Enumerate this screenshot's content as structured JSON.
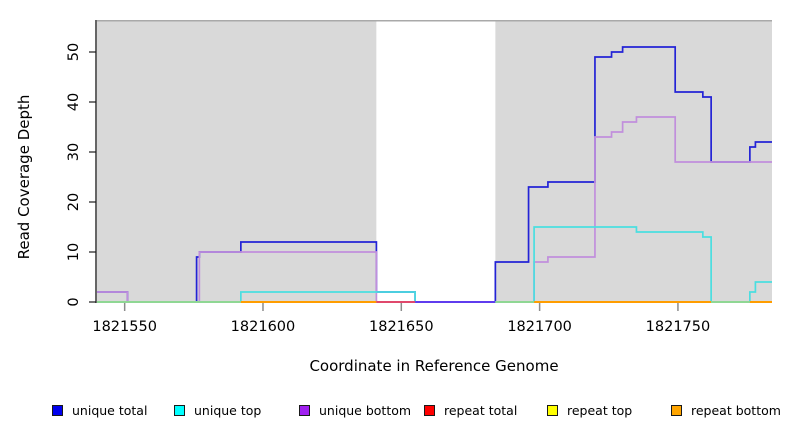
{
  "chart_data": {
    "type": "line",
    "subtype": "step-coverage",
    "title": "",
    "xlabel": "Coordinate in Reference Genome",
    "ylabel": "Read Coverage Depth",
    "x_ticks": [
      1821550,
      1821600,
      1821650,
      1821700,
      1821750
    ],
    "y_ticks": [
      0,
      10,
      20,
      30,
      40,
      50
    ],
    "xlim": [
      1821540,
      1821784
    ],
    "ylim": [
      0,
      56
    ],
    "grid": false,
    "legend_position": "bottom",
    "background_regions": [
      {
        "name": "aligned-region-left",
        "x0": 1821540,
        "x1": 1821641,
        "color": "#d9d9d9"
      },
      {
        "name": "uncovered-gap",
        "x0": 1821641,
        "x1": 1821684,
        "color": "#ffffff"
      },
      {
        "name": "aligned-region-right",
        "x0": 1821684,
        "x1": 1821784,
        "color": "#d9d9d9"
      }
    ],
    "series": [
      {
        "name": "unique total",
        "color": "#2323d6",
        "steps": [
          [
            1821540,
            2
          ],
          [
            1821551,
            0
          ],
          [
            1821576,
            9
          ],
          [
            1821577,
            10
          ],
          [
            1821592,
            12
          ],
          [
            1821641,
            2
          ],
          [
            1821655,
            0
          ],
          [
            1821684,
            8
          ],
          [
            1821696,
            23
          ],
          [
            1821703,
            24
          ],
          [
            1821720,
            49
          ],
          [
            1821726,
            50
          ],
          [
            1821730,
            51
          ],
          [
            1821749,
            42
          ],
          [
            1821759,
            41
          ],
          [
            1821762,
            28
          ],
          [
            1821776,
            31
          ],
          [
            1821778,
            32
          ]
        ],
        "end_x": 1821784
      },
      {
        "name": "unique bottom",
        "color": "#c18fdc",
        "steps": [
          [
            1821540,
            2
          ],
          [
            1821551,
            0
          ],
          [
            1821577,
            10
          ],
          [
            1821641,
            0
          ],
          [
            1821698,
            8
          ],
          [
            1821703,
            9
          ],
          [
            1821720,
            33
          ],
          [
            1821726,
            34
          ],
          [
            1821730,
            36
          ],
          [
            1821735,
            37
          ],
          [
            1821749,
            28
          ]
        ],
        "end_x": 1821784
      },
      {
        "name": "unique top",
        "color": "#4adee0",
        "steps": [
          [
            1821540,
            0
          ],
          [
            1821592,
            2
          ],
          [
            1821655,
            0
          ],
          [
            1821698,
            15
          ],
          [
            1821735,
            14
          ],
          [
            1821759,
            13
          ],
          [
            1821762,
            0
          ],
          [
            1821776,
            2
          ],
          [
            1821778,
            4
          ]
        ],
        "end_x": 1821784
      },
      {
        "name": "repeat total",
        "color": "#ff0000",
        "steps": [
          [
            1821641,
            0
          ]
        ],
        "end_x": 1821655
      },
      {
        "name": "repeat top",
        "color": "#ffff00",
        "steps": [
          [
            1821540,
            0
          ]
        ],
        "end_x": 1821784
      },
      {
        "name": "repeat bottom",
        "color": "#ffa500",
        "steps": [
          [
            1821592,
            0
          ]
        ],
        "end_x": 1821784
      }
    ],
    "baseline_segments_note": "visible zero-depth line colors (overplotted series blends)",
    "baseline_segments": [
      {
        "x0": 1821540,
        "x1": 1821592,
        "color": "#8fd794"
      },
      {
        "x0": 1821592,
        "x1": 1821641,
        "color": "#ff9d00"
      },
      {
        "x0": 1821641,
        "x1": 1821655,
        "color": "#e0486c"
      },
      {
        "x0": 1821655,
        "x1": 1821684,
        "color": "#5f3cee"
      },
      {
        "x0": 1821684,
        "x1": 1821698,
        "color": "#8fd794"
      },
      {
        "x0": 1821698,
        "x1": 1821762,
        "color": "#ff9d00"
      },
      {
        "x0": 1821762,
        "x1": 1821776,
        "color": "#8fd794"
      },
      {
        "x0": 1821776,
        "x1": 1821784,
        "color": "#ff9d00"
      }
    ]
  },
  "legend": {
    "items": [
      {
        "label": "unique total",
        "color": "#0000ee"
      },
      {
        "label": "unique top",
        "color": "#00ffff"
      },
      {
        "label": "unique bottom",
        "color": "#a020f0"
      },
      {
        "label": "repeat total",
        "color": "#ff0000"
      },
      {
        "label": "repeat top",
        "color": "#ffff00"
      },
      {
        "label": "repeat bottom",
        "color": "#ffa500"
      }
    ]
  },
  "axes": {
    "x_tick_labels": [
      "1821550",
      "1821600",
      "1821650",
      "1821700",
      "1821750"
    ],
    "y_tick_labels": [
      "0",
      "10",
      "20",
      "30",
      "40",
      "50"
    ]
  }
}
